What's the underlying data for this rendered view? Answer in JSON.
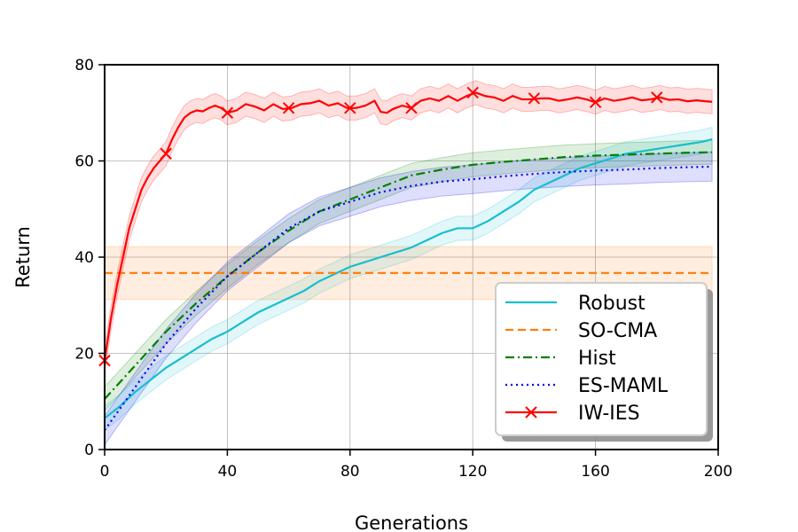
{
  "chart_data": {
    "type": "line",
    "xlabel": "Generations",
    "ylabel": "Return",
    "xlim": [
      0,
      200
    ],
    "ylim": [
      0,
      80
    ],
    "xticks": [
      "0",
      "40",
      "80",
      "120",
      "160",
      "200"
    ],
    "yticks": [
      "0",
      "20",
      "40",
      "60",
      "80"
    ],
    "grid": true,
    "legend_position": "lower-right",
    "series": [
      {
        "name": "Robust",
        "color": "#17becf",
        "style": "solid",
        "marker": "none",
        "x": [
          0,
          5,
          10,
          15,
          20,
          25,
          30,
          35,
          40,
          45,
          50,
          55,
          60,
          65,
          70,
          75,
          80,
          85,
          90,
          95,
          100,
          105,
          110,
          115,
          120,
          125,
          130,
          135,
          140,
          145,
          150,
          155,
          160,
          165,
          170,
          175,
          180,
          185,
          190,
          195,
          198
        ],
        "y": [
          6.5,
          9,
          12,
          14.5,
          17,
          19,
          21,
          23,
          24.5,
          26.5,
          28.5,
          30,
          31.5,
          33,
          35,
          36.5,
          38,
          39,
          40,
          41,
          42,
          43.5,
          45,
          46,
          46,
          47.5,
          49.5,
          51.5,
          54,
          55.5,
          57,
          58.5,
          59.5,
          60.5,
          61.5,
          62,
          62.5,
          63,
          63.5,
          64,
          64.5
        ],
        "band": 2.5
      },
      {
        "name": "SO-CMA",
        "color": "#ff7f0e",
        "style": "dashed",
        "marker": "none",
        "x": [
          0,
          198
        ],
        "y": [
          36.7,
          36.7
        ],
        "band": 5.5
      },
      {
        "name": "Hist",
        "color": "#008000",
        "style": "dashdot",
        "marker": "none",
        "x": [
          0,
          10,
          20,
          30,
          40,
          50,
          60,
          70,
          80,
          90,
          100,
          110,
          120,
          130,
          140,
          150,
          160,
          170,
          180,
          190,
          198
        ],
        "y": [
          10.5,
          17.5,
          24.5,
          30.5,
          36,
          41,
          45.5,
          49.5,
          52,
          54.5,
          57,
          58.2,
          59.2,
          59.8,
          60.3,
          60.8,
          61.1,
          61.3,
          61.5,
          61.7,
          61.8
        ],
        "band": 2.5
      },
      {
        "name": "ES-MAML",
        "color": "#0000ee",
        "style": "dotted",
        "marker": "none",
        "x": [
          0,
          10,
          20,
          30,
          40,
          50,
          60,
          70,
          80,
          90,
          100,
          110,
          120,
          130,
          140,
          150,
          160,
          170,
          180,
          190,
          198
        ],
        "y": [
          4,
          13,
          22,
          29.5,
          36,
          41,
          46,
          49.5,
          51.5,
          53.5,
          54.8,
          55.7,
          56.2,
          56.8,
          57.3,
          57.7,
          58,
          58.2,
          58.5,
          58.7,
          58.8
        ],
        "band": 3
      },
      {
        "name": "IW-IES",
        "color": "#ff0000",
        "style": "solid",
        "marker": "x",
        "x": [
          0,
          2,
          4,
          6,
          8,
          10,
          12,
          14,
          16,
          18,
          20,
          22,
          24,
          26,
          28,
          30,
          32,
          34,
          36,
          38,
          40,
          43,
          46,
          49,
          52,
          55,
          58,
          61,
          64,
          67,
          70,
          73,
          76,
          79,
          82,
          85,
          88,
          90,
          92,
          94,
          97,
          100,
          103,
          106,
          109,
          112,
          115,
          118,
          121,
          124,
          127,
          130,
          133,
          136,
          139,
          142,
          145,
          148,
          151,
          154,
          157,
          160,
          163,
          166,
          169,
          172,
          175,
          178,
          181,
          184,
          187,
          190,
          193,
          196,
          198
        ],
        "y": [
          18.5,
          27,
          34,
          40,
          46,
          50,
          54,
          56.5,
          58.5,
          60,
          61.5,
          64.5,
          67,
          69,
          70,
          70.5,
          70.3,
          71,
          71.5,
          71,
          70,
          70.5,
          71.8,
          71.3,
          70.5,
          71.8,
          70.8,
          71,
          71.8,
          72,
          72.5,
          71.5,
          72,
          71,
          71,
          71.5,
          72.5,
          70.2,
          70,
          70.8,
          71.5,
          71,
          72.5,
          73,
          72.5,
          73.5,
          72.5,
          73.5,
          74.2,
          73.5,
          73.2,
          72.5,
          73.5,
          72.8,
          72.8,
          73,
          73,
          72.5,
          72.8,
          73.2,
          72.8,
          72.2,
          73,
          72.5,
          72.8,
          73.2,
          72.6,
          72.8,
          73.2,
          72.7,
          72.8,
          72.4,
          72.6,
          72.4,
          72.3
        ],
        "band": 2.5,
        "marker_x": [
          0,
          20,
          40,
          60,
          80,
          100,
          120,
          140,
          160,
          180
        ],
        "marker_y": [
          18.5,
          61.5,
          70,
          71,
          71,
          71,
          74.2,
          73,
          72.2,
          73.2
        ]
      }
    ]
  }
}
